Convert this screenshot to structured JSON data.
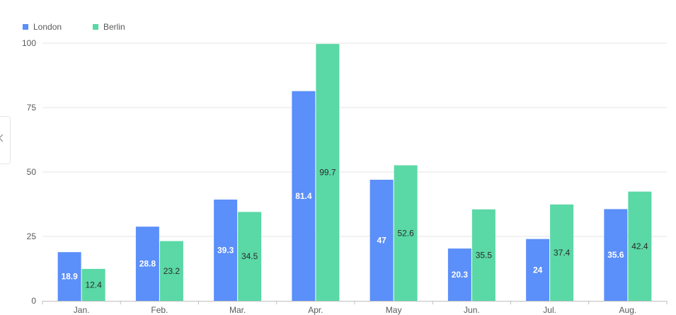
{
  "chart_data": {
    "type": "bar",
    "categories": [
      "Jan.",
      "Feb.",
      "Mar.",
      "Apr.",
      "May",
      "Jun.",
      "Jul.",
      "Aug."
    ],
    "series": [
      {
        "name": "London",
        "color": "#5B8FF9",
        "label_color": "#ffffff",
        "values": [
          18.9,
          28.8,
          39.3,
          81.4,
          47,
          20.3,
          24,
          35.6
        ]
      },
      {
        "name": "Berlin",
        "color": "#5AD8A6",
        "label_color": "#2b2b2b",
        "values": [
          12.4,
          23.2,
          34.5,
          99.7,
          52.6,
          35.5,
          37.4,
          42.4
        ]
      }
    ],
    "yticks": [
      0,
      25,
      50,
      75,
      100
    ],
    "ylim": [
      0,
      100
    ],
    "grid": true,
    "legend_position": "top-left",
    "show_data_labels": true
  },
  "side_panel": {
    "icon": "chevron-left-icon"
  }
}
